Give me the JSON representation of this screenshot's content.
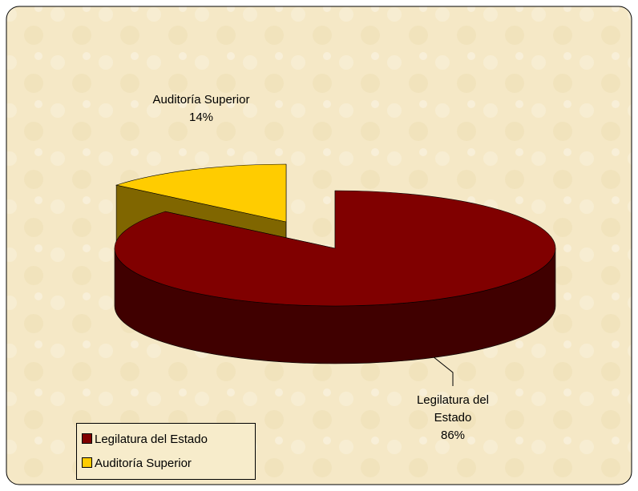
{
  "chart_data": {
    "type": "pie3d",
    "categories": [
      "Legilatura del Estado",
      "Auditoría Superior"
    ],
    "values": [
      86,
      14
    ],
    "value_labels": [
      "86%",
      "14%"
    ],
    "colors": [
      "#800000",
      "#ffcc00"
    ],
    "legend": "bottom-left"
  }
}
